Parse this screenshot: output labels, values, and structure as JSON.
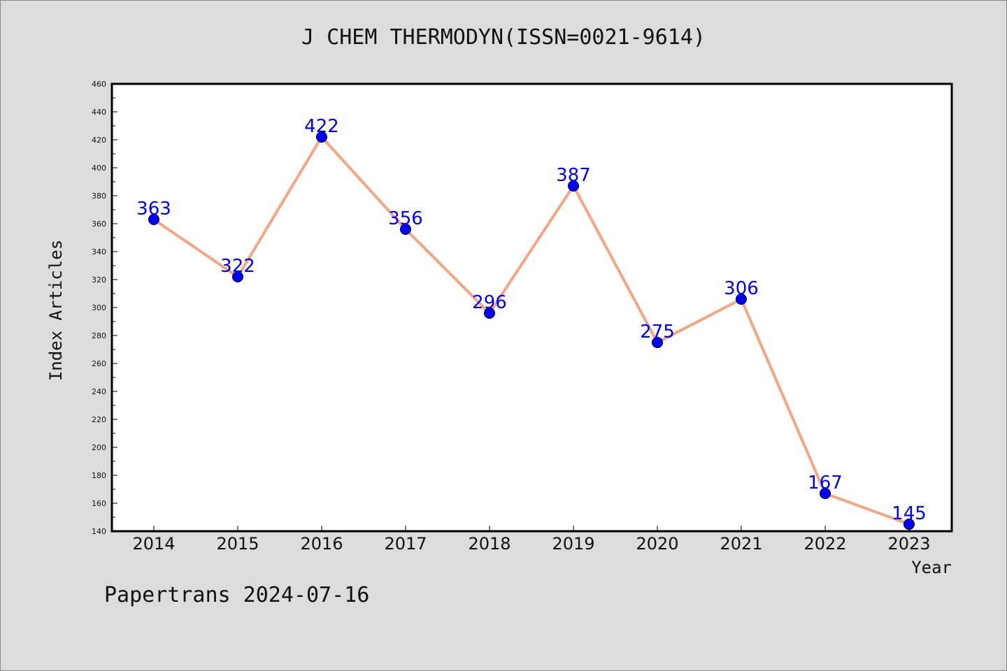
{
  "chart_data": {
    "type": "line",
    "title": "J CHEM THERMODYN(ISSN=0021-9614)",
    "xlabel": "Year",
    "ylabel": "Index Articles",
    "categories": [
      "2014",
      "2015",
      "2016",
      "2017",
      "2018",
      "2019",
      "2020",
      "2021",
      "2022",
      "2023"
    ],
    "values": [
      363,
      322,
      422,
      356,
      296,
      387,
      275,
      306,
      167,
      145
    ],
    "data_labels": [
      "363",
      "322",
      "422",
      "356",
      "296",
      "387",
      "275",
      "306",
      "167",
      "145"
    ],
    "ylim": [
      140,
      460
    ],
    "yticks": [
      140,
      160,
      180,
      200,
      220,
      240,
      260,
      280,
      300,
      320,
      340,
      360,
      380,
      400,
      420,
      440,
      460
    ],
    "grid": false,
    "line_color": "#f4a582",
    "marker_color": "#0000ff",
    "label_color": "#0000ff"
  },
  "footer": {
    "note": "Papertrans 2024-07-16"
  }
}
